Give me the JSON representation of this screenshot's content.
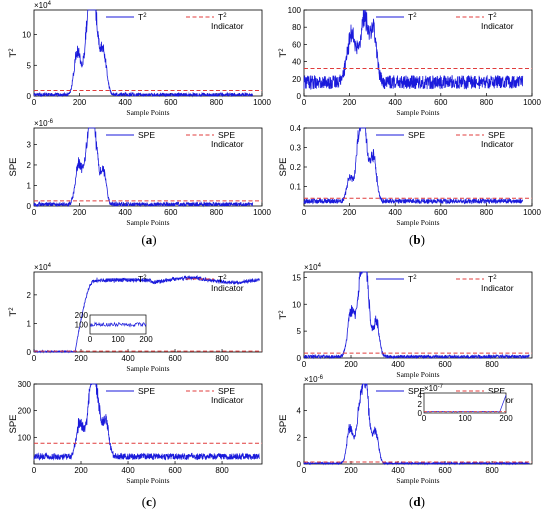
{
  "colors": {
    "series": "#1a1adb",
    "threshold": "#e03c3c",
    "axis": "#000000"
  },
  "captions": [
    {
      "open": "(",
      "letter": "a",
      "close": ")"
    },
    {
      "open": "(",
      "letter": "b",
      "close": ")"
    },
    {
      "open": "(",
      "letter": "c",
      "close": ")"
    },
    {
      "open": "(",
      "letter": "d",
      "close": ")"
    }
  ],
  "chart_data": [
    {
      "panel": "a",
      "type": "line",
      "ylabel_main": "T",
      "ylabel_sup": "2",
      "xlabel": "Sample Points",
      "multiplier_base": "×10",
      "multiplier_exp": "4",
      "xlim": [
        0,
        1000
      ],
      "xticks": [
        "0",
        "200",
        "400",
        "600",
        "800",
        "1000"
      ],
      "ylim": [
        0,
        14
      ],
      "yticks": [
        "0",
        "5",
        "10"
      ],
      "legend_series": "T",
      "legend_series_sup": "2",
      "legend_threshold": "T",
      "legend_threshold_sup": "2",
      "legend_threshold_sub": "Indicator",
      "threshold": 0.9,
      "profile": {
        "n": 960,
        "base": 0.2,
        "noise": 0.3,
        "peaks": [
          [
            190,
            14,
            7
          ],
          [
            240,
            18,
            9.5
          ],
          [
            262,
            18,
            13
          ],
          [
            305,
            14,
            6.5
          ]
        ],
        "step": null
      }
    },
    {
      "panel": "a",
      "type": "line",
      "ylabel_main": "SPE",
      "ylabel_sup": "",
      "xlabel": "Sample Points",
      "multiplier_base": "×10",
      "multiplier_exp": "-6",
      "xlim": [
        0,
        1000
      ],
      "xticks": [
        "0",
        "200",
        "400",
        "600",
        "800",
        "1000"
      ],
      "ylim": [
        0,
        3.8
      ],
      "yticks": [
        "0",
        "1",
        "2",
        "3"
      ],
      "legend_series": "SPE",
      "legend_series_sup": "",
      "legend_threshold": "SPE",
      "legend_threshold_sup": "",
      "legend_threshold_sub": "Indicator",
      "threshold": 0.25,
      "profile": {
        "n": 960,
        "base": 0.08,
        "noise": 0.1,
        "peaks": [
          [
            195,
            14,
            1.9
          ],
          [
            240,
            18,
            2.6
          ],
          [
            262,
            17,
            3.1
          ],
          [
            305,
            12,
            1.6
          ]
        ],
        "step": null
      }
    },
    {
      "panel": "b",
      "type": "line",
      "ylabel_main": "T",
      "ylabel_sup": "2",
      "xlabel": "Sample Points",
      "multiplier_base": "",
      "multiplier_exp": "",
      "xlim": [
        0,
        1000
      ],
      "xticks": [
        "0",
        "200",
        "400",
        "600",
        "800",
        "1000"
      ],
      "ylim": [
        0,
        100
      ],
      "yticks": [
        "0",
        "20",
        "40",
        "60",
        "80",
        "100"
      ],
      "legend_series": "T",
      "legend_series_sup": "2",
      "legend_threshold": "T",
      "legend_threshold_sup": "2",
      "legend_threshold_sub": "Indicator",
      "threshold": 32,
      "profile": {
        "n": 960,
        "base": 16,
        "noise": 8,
        "peaks": [
          [
            210,
            20,
            55
          ],
          [
            265,
            16,
            78
          ],
          [
            305,
            14,
            60
          ]
        ],
        "step": null
      }
    },
    {
      "panel": "b",
      "type": "line",
      "ylabel_main": "SPE",
      "ylabel_sup": "",
      "xlabel": "Sample Points",
      "multiplier_base": "",
      "multiplier_exp": "",
      "xlim": [
        0,
        1000
      ],
      "xticks": [
        "0",
        "200",
        "400",
        "600",
        "800",
        "1000"
      ],
      "ylim": [
        0,
        0.4
      ],
      "yticks": [
        "0.1",
        "0.2",
        "0.3",
        "0.4"
      ],
      "legend_series": "SPE",
      "legend_series_sup": "",
      "legend_threshold": "SPE",
      "legend_threshold_sup": "",
      "legend_threshold_sub": "Indicator",
      "threshold": 0.04,
      "profile": {
        "n": 960,
        "base": 0.025,
        "noise": 0.012,
        "peaks": [
          [
            200,
            12,
            0.12
          ],
          [
            240,
            15,
            0.2
          ],
          [
            262,
            17,
            0.36
          ],
          [
            305,
            13,
            0.22
          ]
        ],
        "step": null
      }
    },
    {
      "panel": "c",
      "type": "line",
      "ylabel_main": "T",
      "ylabel_sup": "2",
      "xlabel": "Sample Points",
      "multiplier_base": "×10",
      "multiplier_exp": "4",
      "xlim": [
        0,
        970
      ],
      "xticks": [
        "0",
        "200",
        "400",
        "600",
        "800"
      ],
      "ylim": [
        0,
        2.8
      ],
      "yticks": [
        "0",
        "1",
        "2"
      ],
      "legend_series": "T",
      "legend_series_sup": "2",
      "legend_threshold": "T",
      "legend_threshold_sup": "2",
      "legend_threshold_sub": "Indicator",
      "threshold": 0.03,
      "profile": {
        "n": 960,
        "base": 0.01,
        "noise": 0.04,
        "peaks": [],
        "step": [
          175,
          260,
          2.5
        ]
      },
      "inset": {
        "xticks": [
          "0",
          "100",
          "200"
        ],
        "yticks": [
          "100",
          "200"
        ],
        "ymax": 200,
        "level": 100
      }
    },
    {
      "panel": "c",
      "type": "line",
      "ylabel_main": "SPE",
      "ylabel_sup": "",
      "xlabel": "Sample Points",
      "multiplier_base": "",
      "multiplier_exp": "",
      "xlim": [
        0,
        970
      ],
      "xticks": [
        "0",
        "200",
        "400",
        "600",
        "800"
      ],
      "ylim": [
        0,
        300
      ],
      "yticks": [
        "100",
        "200",
        "300"
      ],
      "legend_series": "SPE",
      "legend_series_sup": "",
      "legend_threshold": "SPE",
      "legend_threshold_sup": "",
      "legend_threshold_sub": "Indicator",
      "threshold": 78,
      "profile": {
        "n": 960,
        "base": 28,
        "noise": 12,
        "peaks": [
          [
            195,
            14,
            130
          ],
          [
            240,
            16,
            170
          ],
          [
            262,
            17,
            240
          ],
          [
            305,
            13,
            130
          ]
        ],
        "step": null
      }
    },
    {
      "panel": "d",
      "type": "line",
      "ylabel_main": "T",
      "ylabel_sup": "2",
      "xlabel": "Sample Points",
      "multiplier_base": "×10",
      "multiplier_exp": "4",
      "xlim": [
        0,
        970
      ],
      "xticks": [
        "0",
        "200",
        "400",
        "600",
        "800"
      ],
      "ylim": [
        0,
        16
      ],
      "yticks": [
        "0",
        "5",
        "10",
        "15"
      ],
      "legend_series": "T",
      "legend_series_sup": "2",
      "legend_threshold": "T",
      "legend_threshold_sup": "2",
      "legend_threshold_sub": "Indicator",
      "threshold": 0.9,
      "profile": {
        "n": 960,
        "base": 0.25,
        "noise": 0.3,
        "peaks": [
          [
            200,
            14,
            8
          ],
          [
            240,
            17,
            10
          ],
          [
            262,
            16,
            14
          ],
          [
            308,
            12,
            6.5
          ]
        ],
        "step": null
      }
    },
    {
      "panel": "d",
      "type": "line",
      "ylabel_main": "SPE",
      "ylabel_sup": "",
      "xlabel": "Sample Points",
      "multiplier_base": "×10",
      "multiplier_exp": "-6",
      "xlim": [
        0,
        970
      ],
      "xticks": [
        "0",
        "200",
        "400",
        "600",
        "800"
      ],
      "ylim": [
        0,
        6
      ],
      "yticks": [
        "0",
        "2",
        "4"
      ],
      "legend_series": "SPE",
      "legend_series_sup": "",
      "legend_threshold": "SPE",
      "legend_threshold_sup": "",
      "legend_threshold_sub": "Indicator",
      "threshold": 0.15,
      "profile": {
        "n": 960,
        "base": 0.05,
        "noise": 0.06,
        "peaks": [
          [
            195,
            12,
            2.6
          ],
          [
            235,
            15,
            3.2
          ],
          [
            262,
            16,
            5.6
          ],
          [
            305,
            12,
            2.2
          ]
        ],
        "step": null
      },
      "inset": {
        "xticks": [
          "0",
          "100",
          "200"
        ],
        "yticks": [
          "0",
          "2",
          "4"
        ],
        "ymax": 4.5,
        "level": 0.3,
        "multiplier_base": "×10",
        "multiplier_exp": "-7"
      }
    }
  ]
}
